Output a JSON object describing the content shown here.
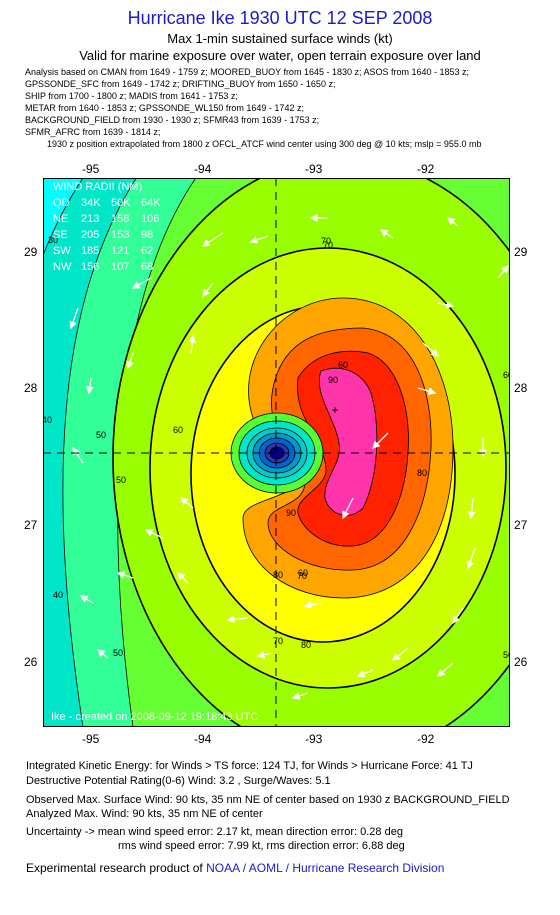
{
  "header": {
    "title": "Hurricane Ike 1930 UTC 12 SEP 2008",
    "subtitle": "Max 1-min sustained surface winds (kt)",
    "valid": "Valid for marine exposure over water, open terrain exposure over land"
  },
  "sources": [
    "Analysis based on  CMAN from 1649 - 1759 z;  MOORED_BUOY from 1645 - 1830 z;  ASOS from 1640 - 1853 z;",
    "GPSSONDE_SFC from 1649 - 1742 z;  DRIFTING_BUOY from 1650 - 1650 z;",
    "SHIP from 1700 - 1800 z;  MADIS from 1641 - 1753 z;",
    "METAR from 1640 - 1853 z;  GPSSONDE_WL150 from 1649 - 1742 z;",
    "BACKGROUND_FIELD from 1930 - 1930 z;  SFMR43 from 1639 - 1753 z;",
    "SFMR_AFRC from 1639 - 1814 z;"
  ],
  "position_note": "1930 z position extrapolated from 1800 z OFCL_ATCF wind center using 300 deg @ 10 kts; mslp = 955.0 mb",
  "map": {
    "lon_ticks": [
      "-95",
      "-94",
      "-93",
      "-92"
    ],
    "lat_ticks": [
      "29",
      "28",
      "27",
      "26"
    ],
    "contour_labels": [
      "30",
      "40",
      "50",
      "60",
      "70",
      "80",
      "90",
      "60",
      "70",
      "80",
      "60",
      "70",
      "60",
      "50",
      "50",
      "40",
      "50",
      "90",
      "80",
      "70"
    ],
    "wind_radii": {
      "title": "WIND RADII (NM)",
      "header": [
        "QD",
        "34K",
        "50K",
        "64K"
      ],
      "rows": [
        [
          "NE",
          "213",
          "158",
          "106"
        ],
        [
          "SE",
          "205",
          "153",
          "98"
        ],
        [
          "SW",
          "185",
          "121",
          "62"
        ],
        [
          "NW",
          "156",
          "107",
          "68"
        ]
      ]
    },
    "watermark": "Ike - created on 2008-09-12 19:18:43 UTC",
    "colors": {
      "c20": "#00ffff",
      "c30": "#00e6c8",
      "c40": "#33ff99",
      "c50": "#66ff33",
      "c60": "#99ff00",
      "c70": "#ccff00",
      "c80": "#ffff00",
      "c90": "#ffa500",
      "c100": "#ff6600",
      "c110": "#ff2200",
      "c120": "#ff33aa"
    }
  },
  "footer": {
    "ike": "Integrated Kinetic Energy:  for Winds > TS force: 124 TJ,  for Winds > Hurricane Force: 41 TJ",
    "dpr": "Destructive Potential Rating(0-6)   Wind: 3.2 , Surge/Waves: 5.1",
    "obs_max": "Observed Max. Surface Wind: 90 kts, 35 nm NE of center based on 1930 z BACKGROUND_FIELD",
    "an_max": "Analyzed Max. Wind: 90 kts, 35 nm NE of center",
    "unc1": "Uncertainty -> mean wind speed error: 2.17 kt,   mean direction error: 0.28 deg",
    "unc2": "rms wind speed error: 7.99 kt,   rms direction error: 6.88 deg",
    "credit_prefix": "Experimental research product of ",
    "credit_org": "NOAA / AOML / Hurricane Research Division"
  }
}
